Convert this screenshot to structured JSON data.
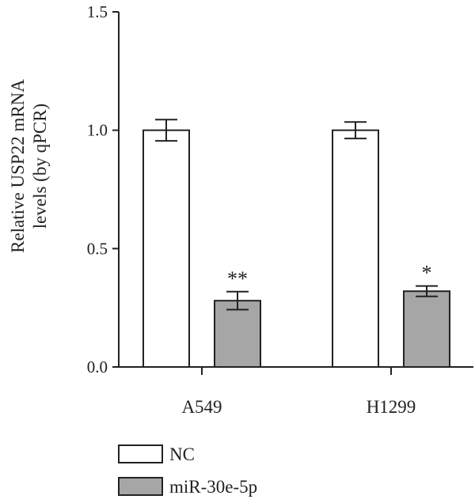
{
  "chart_data": {
    "type": "bar",
    "categories": [
      "A549",
      "H1299"
    ],
    "series": [
      {
        "name": "NC",
        "values": [
          1.0,
          1.0
        ],
        "errors": [
          0.045,
          0.035
        ],
        "color": "#ffffff"
      },
      {
        "name": "miR-30e-5p",
        "values": [
          0.28,
          0.32
        ],
        "errors": [
          0.038,
          0.022
        ],
        "color": "#a6a6a6"
      }
    ],
    "significance": [
      {
        "category": "A549",
        "series": "miR-30e-5p",
        "label": "**"
      },
      {
        "category": "H1299",
        "series": "miR-30e-5p",
        "label": "*"
      }
    ],
    "ylabel_lines": [
      "Relative USP22 mRNA",
      "levels (by qPCR)"
    ],
    "xlabel": "",
    "title": "",
    "ylim": [
      0,
      1.5
    ],
    "yticks": [
      "0.0",
      "0.5",
      "1.0",
      "1.5"
    ],
    "grid": false,
    "legend_position": "bottom-left"
  }
}
